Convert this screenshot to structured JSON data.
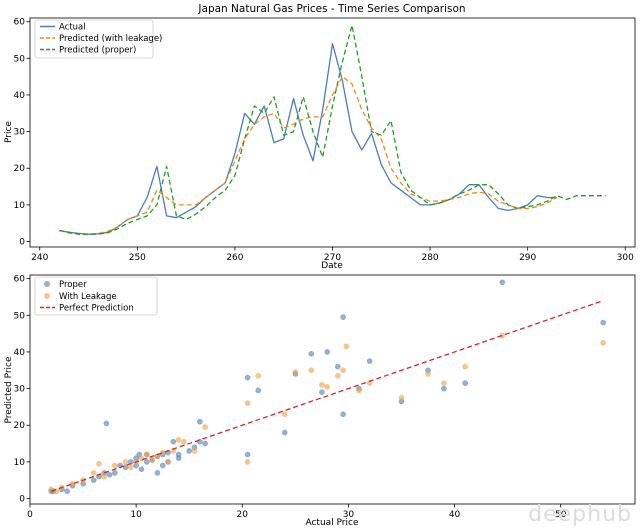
{
  "watermark": "deephub",
  "chart_data": [
    {
      "type": "line",
      "title": "Japan Natural Gas Prices - Time Series Comparison",
      "xlabel": "Date",
      "ylabel": "Price",
      "xlim": [
        239,
        301
      ],
      "ylim": [
        -1.5,
        61
      ],
      "xticks": [
        240,
        250,
        260,
        270,
        280,
        290,
        300
      ],
      "yticks": [
        0,
        10,
        20,
        30,
        40,
        50,
        60
      ],
      "grid": false,
      "legend": "top-left",
      "series": [
        {
          "name": "Actual",
          "color": "#4a7fb5",
          "style": "solid",
          "x": [
            242,
            243,
            244,
            245,
            246,
            247,
            248,
            249,
            250,
            251,
            252,
            253,
            254,
            255,
            256,
            257,
            258,
            259,
            260,
            261,
            262,
            263,
            264,
            265,
            266,
            267,
            268,
            269,
            270,
            271,
            272,
            273,
            274,
            275,
            276,
            277,
            278,
            279,
            280,
            281,
            282,
            283,
            284,
            285,
            286,
            287,
            288,
            289,
            290,
            291,
            292,
            293
          ],
          "y": [
            3,
            2.5,
            2.2,
            2,
            2.1,
            2.5,
            4,
            6,
            7,
            12,
            20.5,
            7,
            6.5,
            8,
            9.5,
            12,
            14,
            16,
            24,
            35,
            32,
            37,
            27,
            28,
            39,
            29,
            22,
            36,
            54,
            44,
            30,
            25,
            29.5,
            21,
            16,
            14,
            12,
            10,
            10,
            10.5,
            11.5,
            13,
            15.5,
            15.5,
            12,
            9,
            8.5,
            9,
            10,
            12.5,
            12,
            12
          ]
        },
        {
          "name": "Predicted (with leakage)",
          "color": "#f08a24",
          "style": "dashed",
          "x": [
            242,
            243,
            244,
            245,
            246,
            247,
            248,
            249,
            250,
            251,
            252,
            253,
            254,
            255,
            256,
            257,
            258,
            259,
            260,
            261,
            262,
            263,
            264,
            265,
            266,
            267,
            268,
            269,
            270,
            271,
            272,
            273,
            274,
            275,
            276,
            277,
            278,
            279,
            280,
            281,
            282,
            283,
            284,
            285,
            286,
            287,
            288,
            289,
            290,
            291,
            292,
            293
          ],
          "y": [
            3,
            2.3,
            2,
            2,
            2.2,
            2.8,
            4,
            6,
            7,
            8,
            14,
            12,
            10,
            10,
            10,
            12,
            14,
            16,
            22,
            28,
            32,
            34,
            35,
            31,
            32,
            33.5,
            34,
            34,
            40,
            45,
            43,
            36,
            31,
            28,
            20,
            16,
            13,
            12,
            11,
            11,
            11.5,
            12,
            13,
            13.5,
            13,
            11,
            10,
            9,
            9,
            9.5,
            10.5,
            12
          ]
        },
        {
          "name": "Predicted (proper)",
          "color": "#2a9a2a",
          "style": "dashed",
          "x": [
            242,
            243,
            244,
            245,
            246,
            247,
            248,
            249,
            250,
            251,
            252,
            253,
            254,
            255,
            256,
            257,
            258,
            259,
            260,
            261,
            262,
            263,
            264,
            265,
            266,
            267,
            268,
            269,
            270,
            271,
            272,
            273,
            274,
            275,
            276,
            277,
            278,
            279,
            280,
            281,
            282,
            283,
            284,
            285,
            286,
            287,
            288,
            289,
            290,
            291,
            292,
            293,
            294,
            295,
            296,
            297,
            298
          ],
          "y": [
            3,
            2.5,
            2,
            2,
            2,
            2.4,
            3.5,
            5,
            6,
            7,
            10,
            20.5,
            7,
            6,
            7.5,
            9.5,
            12,
            14,
            18,
            28,
            37,
            35,
            39.5,
            29,
            30,
            39.5,
            30,
            23,
            37,
            49,
            59,
            45,
            30,
            29,
            33,
            19,
            14,
            12,
            10,
            10.5,
            11.5,
            13,
            14,
            15.5,
            15.5,
            13,
            10,
            9,
            9.5,
            10,
            11,
            12.5,
            11.5,
            12.5,
            12.5,
            12.5,
            12.5
          ]
        }
      ]
    },
    {
      "type": "scatter",
      "title": "",
      "xlabel": "Actual Price",
      "ylabel": "Predicted Price",
      "xlim": [
        0,
        57
      ],
      "ylim": [
        -1.5,
        61
      ],
      "xticks": [
        0,
        10,
        20,
        30,
        40,
        50
      ],
      "yticks": [
        0,
        10,
        20,
        30,
        40,
        50,
        60
      ],
      "grid": false,
      "legend": "top-left",
      "series": [
        {
          "name": "Proper",
          "color": "#4a7fb5",
          "points": [
            [
              2,
              2
            ],
            [
              2.2,
              2
            ],
            [
              3,
              2.5
            ],
            [
              3.5,
              2
            ],
            [
              4,
              3.5
            ],
            [
              5,
              4
            ],
            [
              6,
              5
            ],
            [
              6.5,
              6
            ],
            [
              7,
              7
            ],
            [
              7.2,
              20.5
            ],
            [
              7.5,
              6.5
            ],
            [
              8,
              7
            ],
            [
              8.5,
              9
            ],
            [
              9,
              8.5
            ],
            [
              9.5,
              10
            ],
            [
              10,
              9
            ],
            [
              10,
              11
            ],
            [
              10.3,
              12
            ],
            [
              10.5,
              8
            ],
            [
              11,
              10
            ],
            [
              11,
              12
            ],
            [
              11.5,
              10.5
            ],
            [
              12,
              7
            ],
            [
              12,
              11.5
            ],
            [
              12.5,
              9
            ],
            [
              12.5,
              12
            ],
            [
              13,
              10
            ],
            [
              13,
              12.5
            ],
            [
              13.5,
              15.5
            ],
            [
              14,
              11
            ],
            [
              14,
              12
            ],
            [
              15,
              13
            ],
            [
              15.5,
              14
            ],
            [
              16,
              21
            ],
            [
              16,
              15.5
            ],
            [
              16.5,
              15
            ],
            [
              20.5,
              12
            ],
            [
              20.5,
              33
            ],
            [
              21.5,
              29.5
            ],
            [
              24,
              18
            ],
            [
              25,
              34
            ],
            [
              26.5,
              39.5
            ],
            [
              27.5,
              29
            ],
            [
              28,
              40
            ],
            [
              29,
              36
            ],
            [
              29.5,
              23
            ],
            [
              29.5,
              49.5
            ],
            [
              31,
              30
            ],
            [
              32,
              37.5
            ],
            [
              35,
              26.5
            ],
            [
              37.5,
              35
            ],
            [
              39,
              30
            ],
            [
              41,
              31.5
            ],
            [
              44.5,
              59
            ],
            [
              54,
              48
            ]
          ]
        },
        {
          "name": "With Leakage",
          "color": "#f0a040",
          "points": [
            [
              2,
              2.5
            ],
            [
              2.5,
              2
            ],
            [
              3,
              3
            ],
            [
              4,
              4
            ],
            [
              5,
              5
            ],
            [
              6,
              7
            ],
            [
              6.5,
              9.5
            ],
            [
              7,
              6
            ],
            [
              8,
              9
            ],
            [
              9,
              10
            ],
            [
              9.5,
              8.5
            ],
            [
              10,
              10
            ],
            [
              10.5,
              11
            ],
            [
              11,
              12
            ],
            [
              11.5,
              10.5
            ],
            [
              12,
              11.5
            ],
            [
              12.5,
              12.5
            ],
            [
              13,
              10
            ],
            [
              13.5,
              13
            ],
            [
              14,
              16
            ],
            [
              14.5,
              15.5
            ],
            [
              15.5,
              13
            ],
            [
              16.5,
              19.5
            ],
            [
              20.5,
              10
            ],
            [
              20.5,
              26
            ],
            [
              21.5,
              33.5
            ],
            [
              24,
              23
            ],
            [
              25,
              34.5
            ],
            [
              26.5,
              35
            ],
            [
              27.5,
              31
            ],
            [
              28,
              30.5
            ],
            [
              29,
              33.5
            ],
            [
              29.5,
              35
            ],
            [
              29.8,
              41.5
            ],
            [
              31,
              29.5
            ],
            [
              32,
              31.5
            ],
            [
              35,
              27.5
            ],
            [
              37.5,
              34
            ],
            [
              39,
              31.5
            ],
            [
              41,
              36
            ],
            [
              44.5,
              44.5
            ],
            [
              54,
              42.5
            ]
          ]
        },
        {
          "name": "Perfect Prediction",
          "color": "#d62728",
          "style": "dashed",
          "line": [
            [
              2,
              2
            ],
            [
              54,
              54
            ]
          ]
        }
      ]
    }
  ]
}
